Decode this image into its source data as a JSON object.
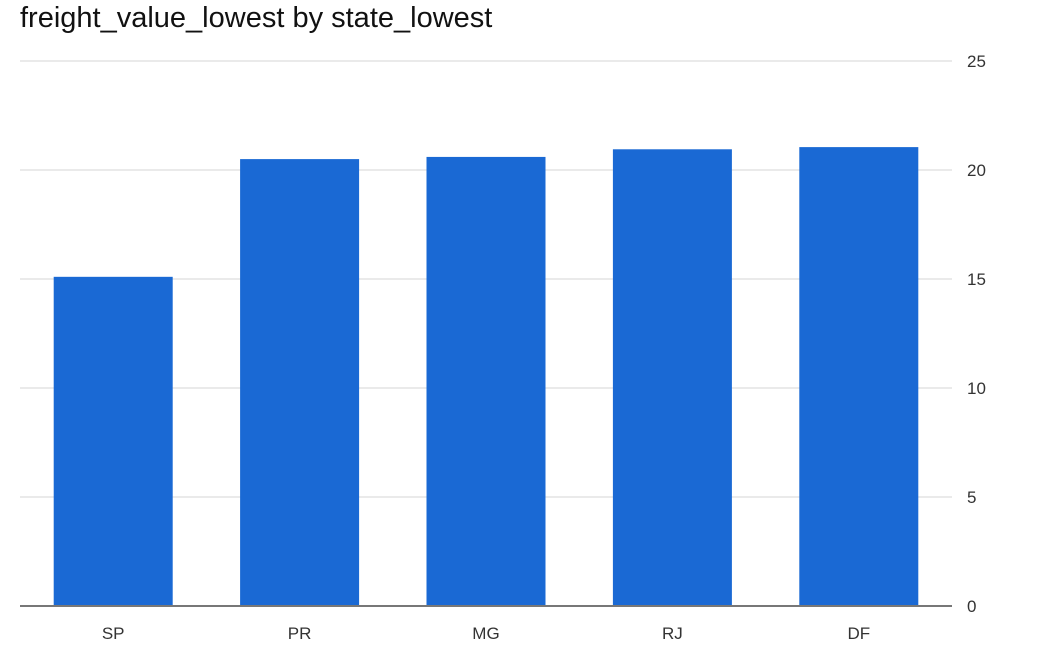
{
  "chart_data": {
    "type": "bar",
    "title": "freight_value_lowest by state_lowest",
    "categories": [
      "SP",
      "PR",
      "MG",
      "RJ",
      "DF"
    ],
    "values": [
      15.1,
      20.5,
      20.6,
      20.95,
      21.05
    ],
    "xlabel": "",
    "ylabel": "",
    "ylim": [
      0,
      25
    ],
    "yticks": [
      0,
      5,
      10,
      15,
      20,
      25
    ],
    "y_axis_side": "right",
    "grid": true,
    "legend": "none",
    "bar_color": "#1a69d4",
    "grid_color": "#e3e3e3",
    "axis_color": "#777777"
  }
}
